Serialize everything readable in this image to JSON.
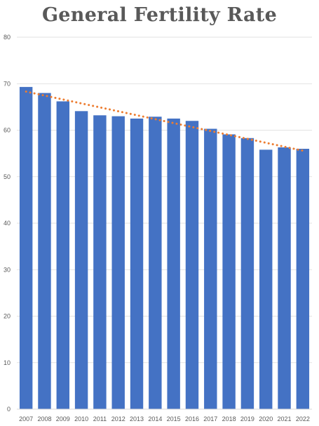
{
  "chart_data": {
    "type": "bar",
    "title": "General Fertility Rate",
    "xlabel": "",
    "ylabel": "",
    "ylim": [
      0,
      80
    ],
    "yticks": [
      0,
      10,
      20,
      30,
      40,
      50,
      60,
      70,
      80
    ],
    "categories": [
      "2007",
      "2008",
      "2009",
      "2010",
      "2011",
      "2012",
      "2013",
      "2014",
      "2015",
      "2016",
      "2017",
      "2018",
      "2019",
      "2020",
      "2021",
      "2022"
    ],
    "values": [
      69.3,
      68.0,
      66.2,
      64.1,
      63.2,
      63.0,
      62.5,
      62.9,
      62.5,
      62.0,
      60.3,
      59.1,
      58.3,
      55.8,
      56.3,
      56.0
    ],
    "trendline": {
      "type": "linear",
      "start": 68.3,
      "end": 55.6
    },
    "grid": true,
    "legend": "none",
    "colors": {
      "bar": "#4472C4",
      "trend": "#ED7D31",
      "grid": "#D9D9D9",
      "text": "#595959"
    }
  }
}
